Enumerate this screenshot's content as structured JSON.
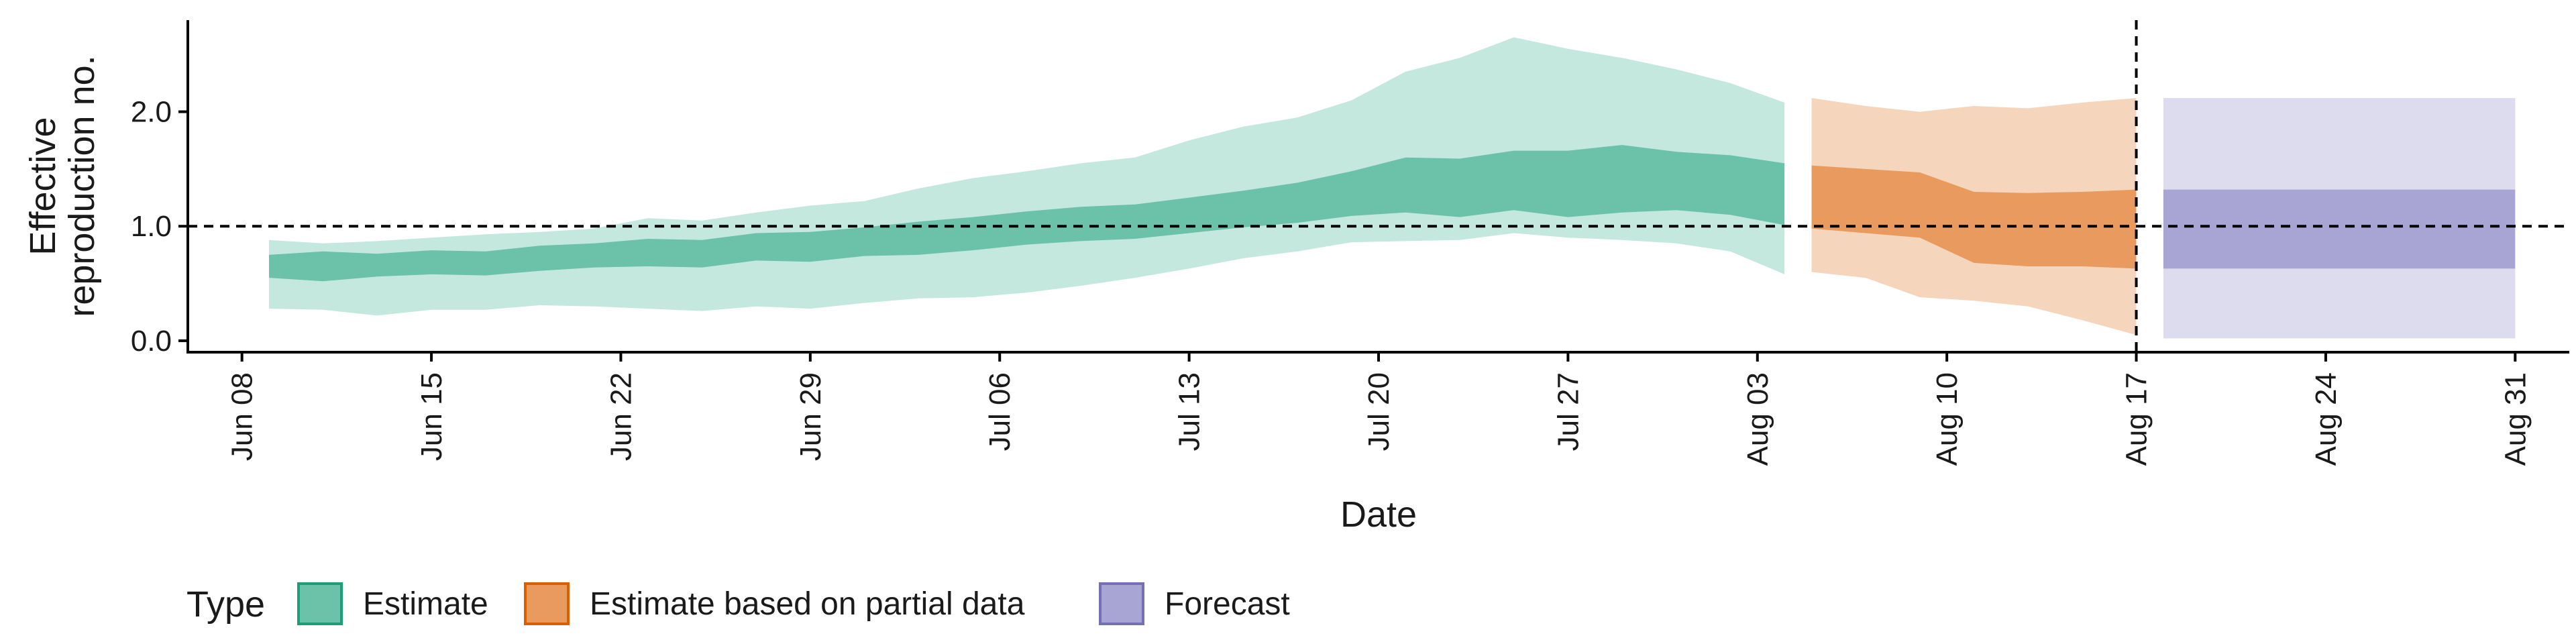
{
  "chart_data": {
    "type": "area",
    "xlabel": "Date",
    "ylabel_lines": [
      "Effective",
      "reproduction no."
    ],
    "x_axis": {
      "type": "date",
      "range": [
        "2020-06-06",
        "2020-09-02"
      ],
      "ticks": [
        {
          "date": "2020-06-08",
          "label": "Jun 08"
        },
        {
          "date": "2020-06-15",
          "label": "Jun 15"
        },
        {
          "date": "2020-06-22",
          "label": "Jun 22"
        },
        {
          "date": "2020-06-29",
          "label": "Jun 29"
        },
        {
          "date": "2020-07-06",
          "label": "Jul 06"
        },
        {
          "date": "2020-07-13",
          "label": "Jul 13"
        },
        {
          "date": "2020-07-20",
          "label": "Jul 20"
        },
        {
          "date": "2020-07-27",
          "label": "Jul 27"
        },
        {
          "date": "2020-08-03",
          "label": "Aug 03"
        },
        {
          "date": "2020-08-10",
          "label": "Aug 10"
        },
        {
          "date": "2020-08-17",
          "label": "Aug 17"
        },
        {
          "date": "2020-08-24",
          "label": "Aug 24"
        },
        {
          "date": "2020-08-31",
          "label": "Aug 31"
        }
      ]
    },
    "y_axis": {
      "range": [
        -0.1,
        2.8
      ],
      "ticks": [
        {
          "value": 0,
          "label": "0.0"
        },
        {
          "value": 1,
          "label": "1.0"
        },
        {
          "value": 2,
          "label": "2.0"
        }
      ]
    },
    "grid": false,
    "reference_lines": [
      {
        "orientation": "horizontal",
        "value": 1.0,
        "style": "dashed"
      },
      {
        "orientation": "vertical",
        "date": "2020-08-17",
        "style": "dashed"
      }
    ],
    "legend": {
      "title": "Type",
      "position": "bottom-left",
      "entries": [
        {
          "label": "Estimate",
          "fill": "#6cc2a8",
          "stroke": "#1b9e77"
        },
        {
          "label": "Estimate based on partial data",
          "fill": "#e89a5f",
          "stroke": "#d95f02"
        },
        {
          "label": "Forecast",
          "fill": "#a8a5d4",
          "stroke": "#7570b3"
        }
      ]
    },
    "series": [
      {
        "type_label": "Estimate",
        "color_outer": "#c5e8de",
        "color_inner": "#6cc2a8",
        "points": [
          {
            "date": "2020-06-09",
            "lo90": 0.28,
            "lo50": 0.55,
            "hi50": 0.75,
            "hi90": 0.88
          },
          {
            "date": "2020-06-11",
            "lo90": 0.27,
            "lo50": 0.52,
            "hi50": 0.78,
            "hi90": 0.85
          },
          {
            "date": "2020-06-13",
            "lo90": 0.22,
            "lo50": 0.56,
            "hi50": 0.76,
            "hi90": 0.87
          },
          {
            "date": "2020-06-15",
            "lo90": 0.27,
            "lo50": 0.58,
            "hi50": 0.79,
            "hi90": 0.9
          },
          {
            "date": "2020-06-17",
            "lo90": 0.27,
            "lo50": 0.57,
            "hi50": 0.78,
            "hi90": 0.93
          },
          {
            "date": "2020-06-19",
            "lo90": 0.31,
            "lo50": 0.61,
            "hi50": 0.83,
            "hi90": 0.95
          },
          {
            "date": "2020-06-21",
            "lo90": 0.3,
            "lo50": 0.64,
            "hi50": 0.85,
            "hi90": 0.98
          },
          {
            "date": "2020-06-23",
            "lo90": 0.28,
            "lo50": 0.65,
            "hi50": 0.89,
            "hi90": 1.07
          },
          {
            "date": "2020-06-25",
            "lo90": 0.26,
            "lo50": 0.64,
            "hi50": 0.88,
            "hi90": 1.05
          },
          {
            "date": "2020-06-27",
            "lo90": 0.3,
            "lo50": 0.7,
            "hi50": 0.94,
            "hi90": 1.12
          },
          {
            "date": "2020-06-29",
            "lo90": 0.28,
            "lo50": 0.69,
            "hi50": 0.95,
            "hi90": 1.18
          },
          {
            "date": "2020-07-01",
            "lo90": 0.33,
            "lo50": 0.74,
            "hi50": 0.99,
            "hi90": 1.22
          },
          {
            "date": "2020-07-03",
            "lo90": 0.37,
            "lo50": 0.75,
            "hi50": 1.04,
            "hi90": 1.33
          },
          {
            "date": "2020-07-05",
            "lo90": 0.38,
            "lo50": 0.79,
            "hi50": 1.08,
            "hi90": 1.42
          },
          {
            "date": "2020-07-07",
            "lo90": 0.42,
            "lo50": 0.84,
            "hi50": 1.13,
            "hi90": 1.48
          },
          {
            "date": "2020-07-09",
            "lo90": 0.48,
            "lo50": 0.87,
            "hi50": 1.17,
            "hi90": 1.55
          },
          {
            "date": "2020-07-11",
            "lo90": 0.55,
            "lo50": 0.89,
            "hi50": 1.19,
            "hi90": 1.6
          },
          {
            "date": "2020-07-13",
            "lo90": 0.63,
            "lo50": 0.94,
            "hi50": 1.25,
            "hi90": 1.75
          },
          {
            "date": "2020-07-15",
            "lo90": 0.72,
            "lo50": 0.99,
            "hi50": 1.31,
            "hi90": 1.87
          },
          {
            "date": "2020-07-17",
            "lo90": 0.78,
            "lo50": 1.03,
            "hi50": 1.38,
            "hi90": 1.95
          },
          {
            "date": "2020-07-19",
            "lo90": 0.86,
            "lo50": 1.09,
            "hi50": 1.48,
            "hi90": 2.1
          },
          {
            "date": "2020-07-21",
            "lo90": 0.87,
            "lo50": 1.12,
            "hi50": 1.6,
            "hi90": 2.35
          },
          {
            "date": "2020-07-23",
            "lo90": 0.88,
            "lo50": 1.08,
            "hi50": 1.59,
            "hi90": 2.47
          },
          {
            "date": "2020-07-25",
            "lo90": 0.94,
            "lo50": 1.14,
            "hi50": 1.66,
            "hi90": 2.65
          },
          {
            "date": "2020-07-27",
            "lo90": 0.9,
            "lo50": 1.08,
            "hi50": 1.66,
            "hi90": 2.55
          },
          {
            "date": "2020-07-29",
            "lo90": 0.88,
            "lo50": 1.12,
            "hi50": 1.71,
            "hi90": 2.47
          },
          {
            "date": "2020-07-31",
            "lo90": 0.85,
            "lo50": 1.14,
            "hi50": 1.65,
            "hi90": 2.37
          },
          {
            "date": "2020-08-02",
            "lo90": 0.78,
            "lo50": 1.1,
            "hi50": 1.62,
            "hi90": 2.25
          },
          {
            "date": "2020-08-04",
            "lo90": 0.58,
            "lo50": 1.01,
            "hi50": 1.55,
            "hi90": 2.08
          }
        ]
      },
      {
        "type_label": "Estimate based on partial data",
        "color_outer": "#f5d5bc",
        "color_inner": "#e89a5f",
        "points": [
          {
            "date": "2020-08-05",
            "lo90": 0.6,
            "lo50": 0.98,
            "hi50": 1.53,
            "hi90": 2.12
          },
          {
            "date": "2020-08-07",
            "lo90": 0.55,
            "lo50": 0.94,
            "hi50": 1.5,
            "hi90": 2.05
          },
          {
            "date": "2020-08-09",
            "lo90": 0.38,
            "lo50": 0.9,
            "hi50": 1.47,
            "hi90": 2.0
          },
          {
            "date": "2020-08-11",
            "lo90": 0.35,
            "lo50": 0.68,
            "hi50": 1.3,
            "hi90": 2.05
          },
          {
            "date": "2020-08-13",
            "lo90": 0.3,
            "lo50": 0.65,
            "hi50": 1.29,
            "hi90": 2.03
          },
          {
            "date": "2020-08-15",
            "lo90": 0.18,
            "lo50": 0.65,
            "hi50": 1.3,
            "hi90": 2.08
          },
          {
            "date": "2020-08-17",
            "lo90": 0.05,
            "lo50": 0.63,
            "hi50": 1.32,
            "hi90": 2.12
          }
        ]
      },
      {
        "type_label": "Forecast",
        "color_outer": "#dcdcee",
        "color_inner": "#a8a5d4",
        "points": [
          {
            "date": "2020-08-18",
            "lo90": 0.02,
            "lo50": 0.63,
            "hi50": 1.32,
            "hi90": 2.12
          },
          {
            "date": "2020-08-31",
            "lo90": 0.02,
            "lo50": 0.63,
            "hi50": 1.32,
            "hi90": 2.12
          }
        ]
      }
    ]
  }
}
